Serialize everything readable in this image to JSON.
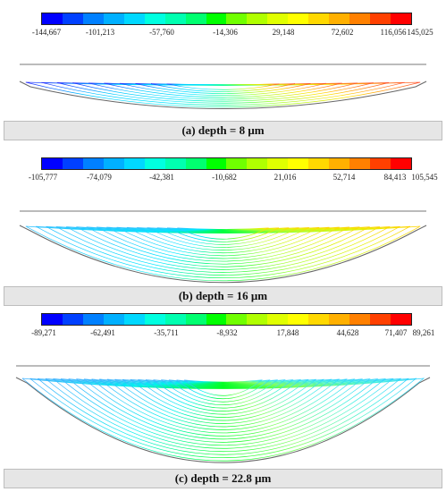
{
  "colormap": [
    "#0000ff",
    "#0040ff",
    "#0080ff",
    "#00b0ff",
    "#00d8ff",
    "#00ffe0",
    "#00ffb0",
    "#00ff70",
    "#00ff00",
    "#70ff00",
    "#b0ff00",
    "#e0ff00",
    "#ffff00",
    "#ffd800",
    "#ffb000",
    "#ff8000",
    "#ff4000",
    "#ff0000"
  ],
  "panels": [
    {
      "caption": "(a) depth = 8 μm",
      "ticks": [
        "-144,667",
        "-101,213",
        "-57,760",
        "-14,306",
        "29,148",
        "72,602",
        "116,056",
        "145,025"
      ]
    },
    {
      "caption": "(b) depth = 16 μm",
      "ticks": [
        "-105,777",
        "-74,079",
        "-42,381",
        "-10,682",
        "21,016",
        "52,714",
        "84,413",
        "105,545"
      ]
    },
    {
      "caption": "(c) depth = 22.8 μm",
      "ticks": [
        "-89,271",
        "-62,491",
        "-35,711",
        "-8,932",
        "17,848",
        "44,628",
        "71,407",
        "89,261"
      ]
    }
  ]
}
